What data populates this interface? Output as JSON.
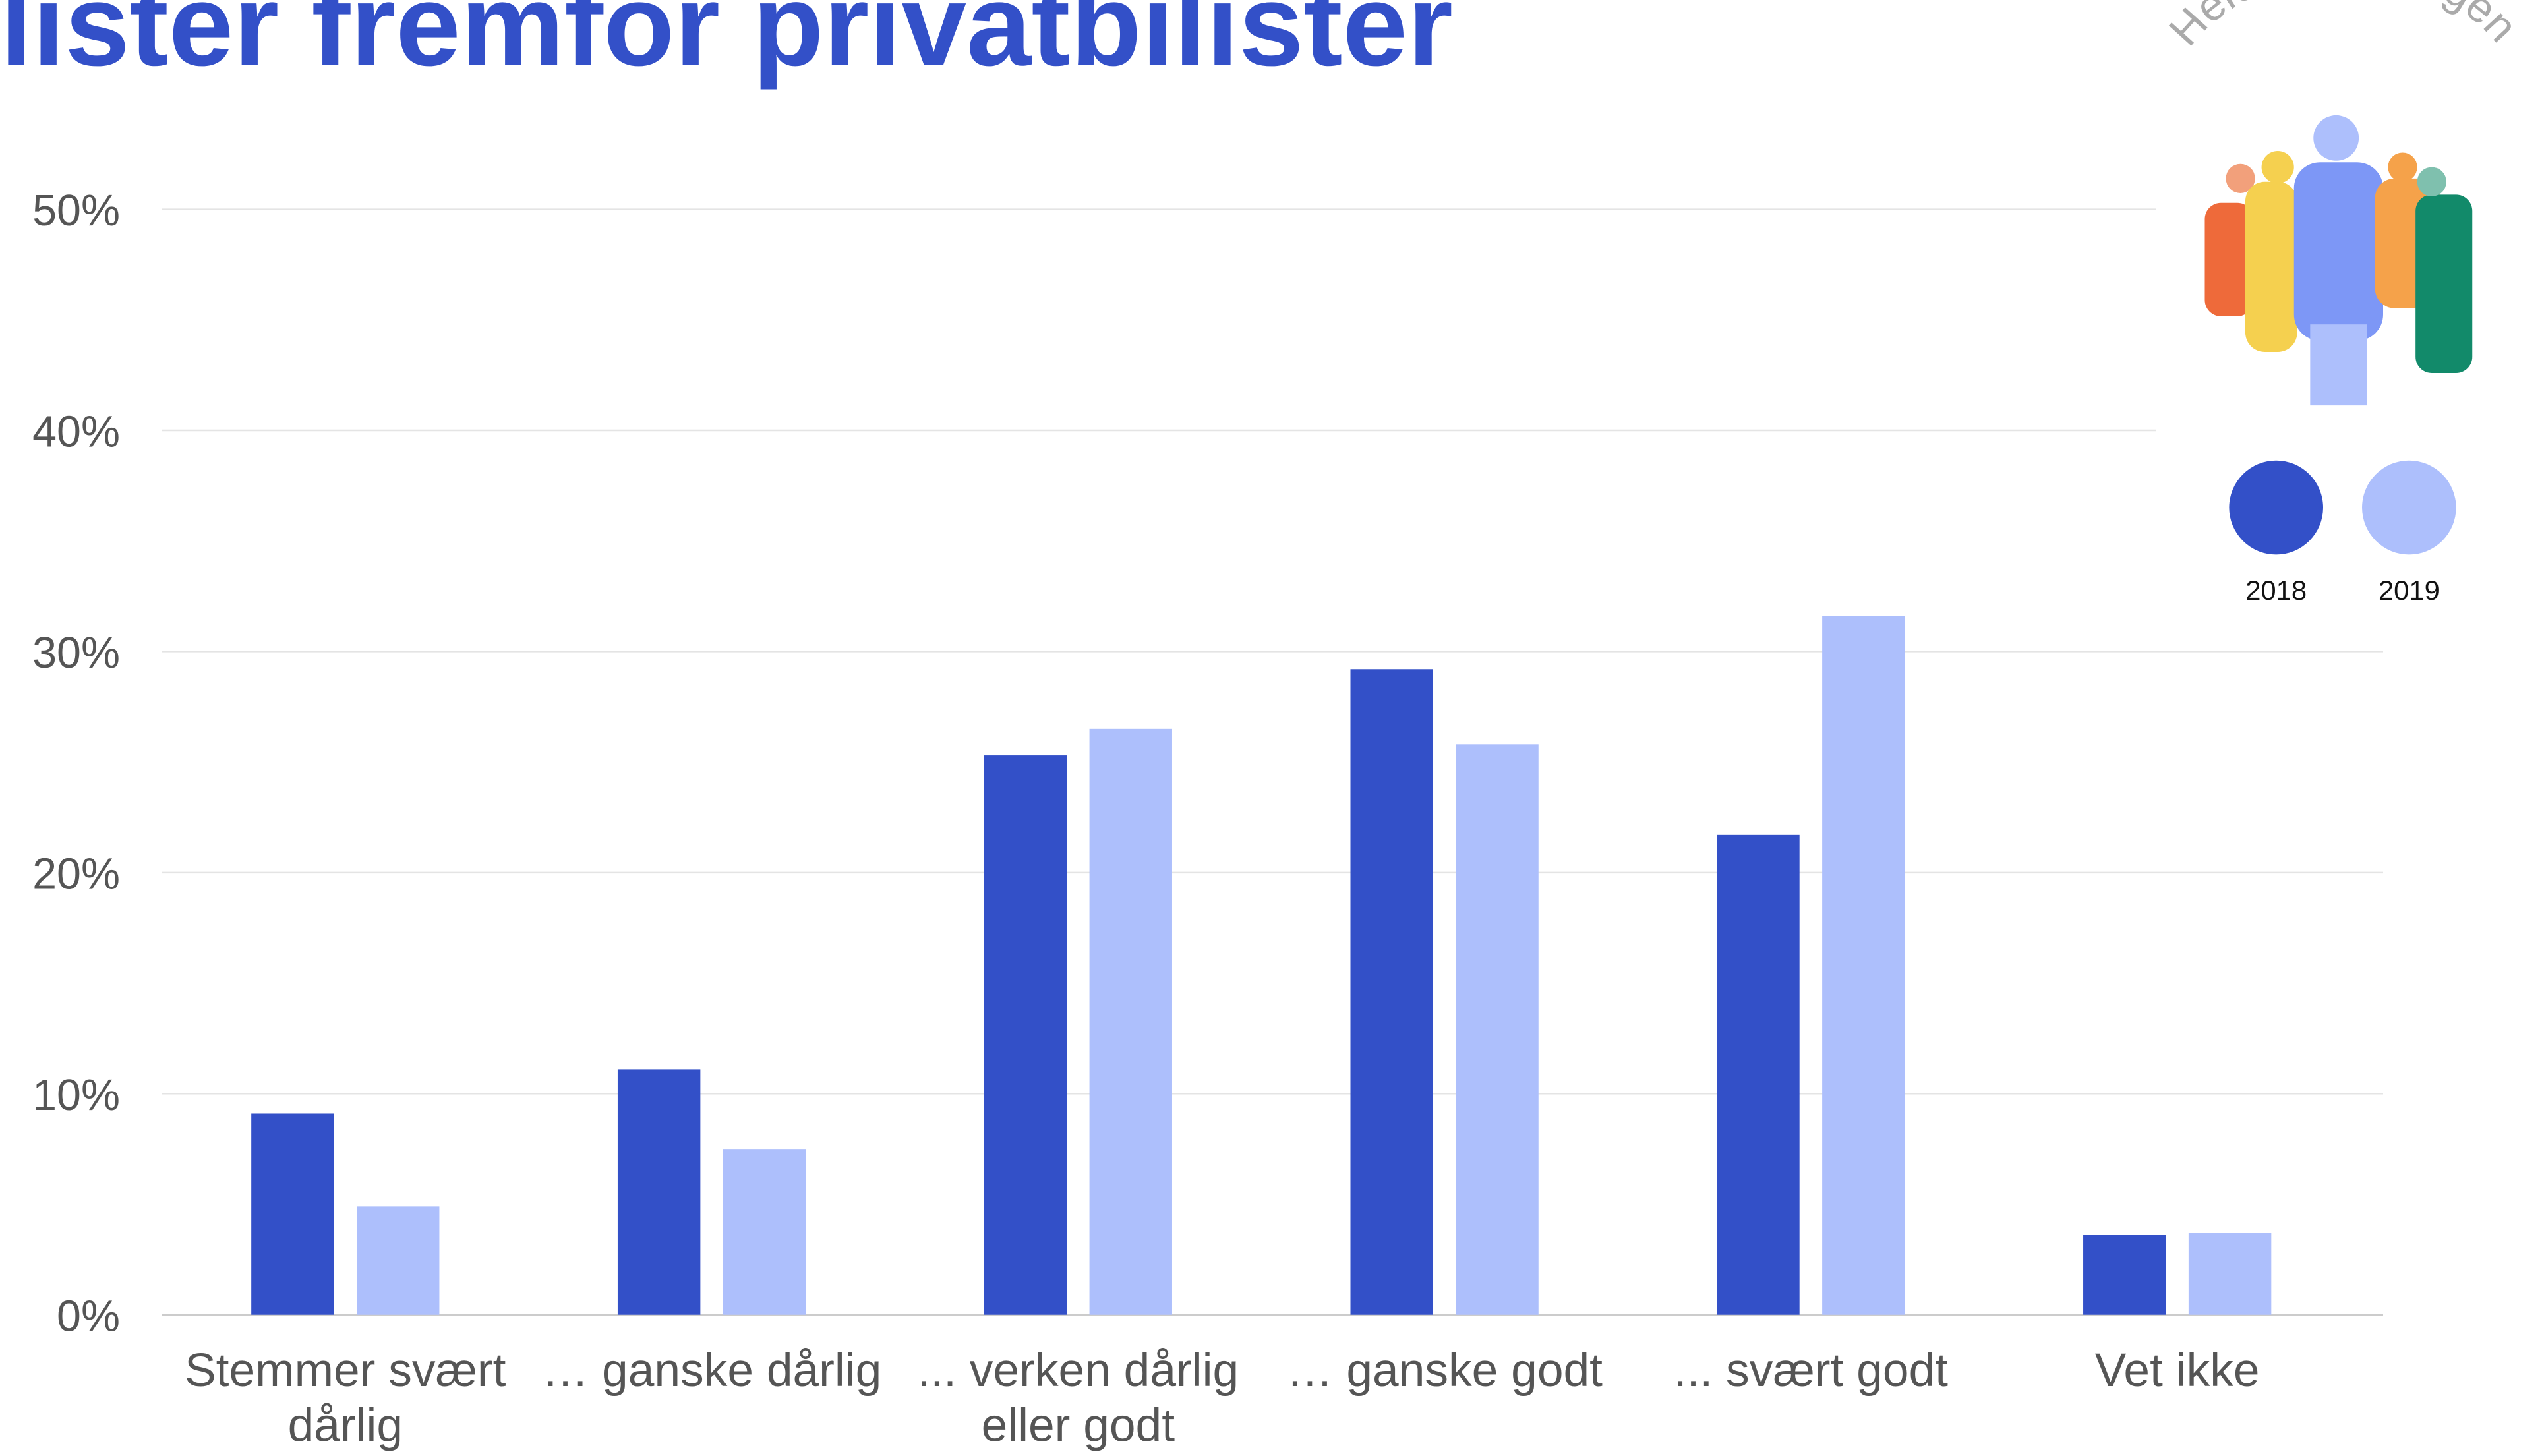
{
  "chart_data": {
    "type": "bar",
    "title": "lister fremfor privatbilister",
    "badge": "Hele befolkningen",
    "categories": [
      "Stemmer svært dårlig",
      "… ganske dårlig",
      "... verken dårlig eller godt",
      "… ganske godt",
      "... svært godt",
      "Vet ikke"
    ],
    "series": [
      {
        "name": "2018",
        "color": "#3350c8",
        "values": [
          9.1,
          11.1,
          25.3,
          29.2,
          21.7,
          3.6
        ]
      },
      {
        "name": "2019",
        "color": "#adbffc",
        "values": [
          4.9,
          7.5,
          26.5,
          25.8,
          31.6,
          3.7
        ]
      }
    ],
    "ylim": [
      0,
      50
    ],
    "yticks": [
      {
        "value": 0,
        "label": "0%"
      },
      {
        "value": 10,
        "label": "10%"
      },
      {
        "value": 20,
        "label": "20%"
      },
      {
        "value": 30,
        "label": "30%"
      },
      {
        "value": 40,
        "label": "40%"
      },
      {
        "value": 50,
        "label": "50%"
      }
    ],
    "grid": true
  }
}
